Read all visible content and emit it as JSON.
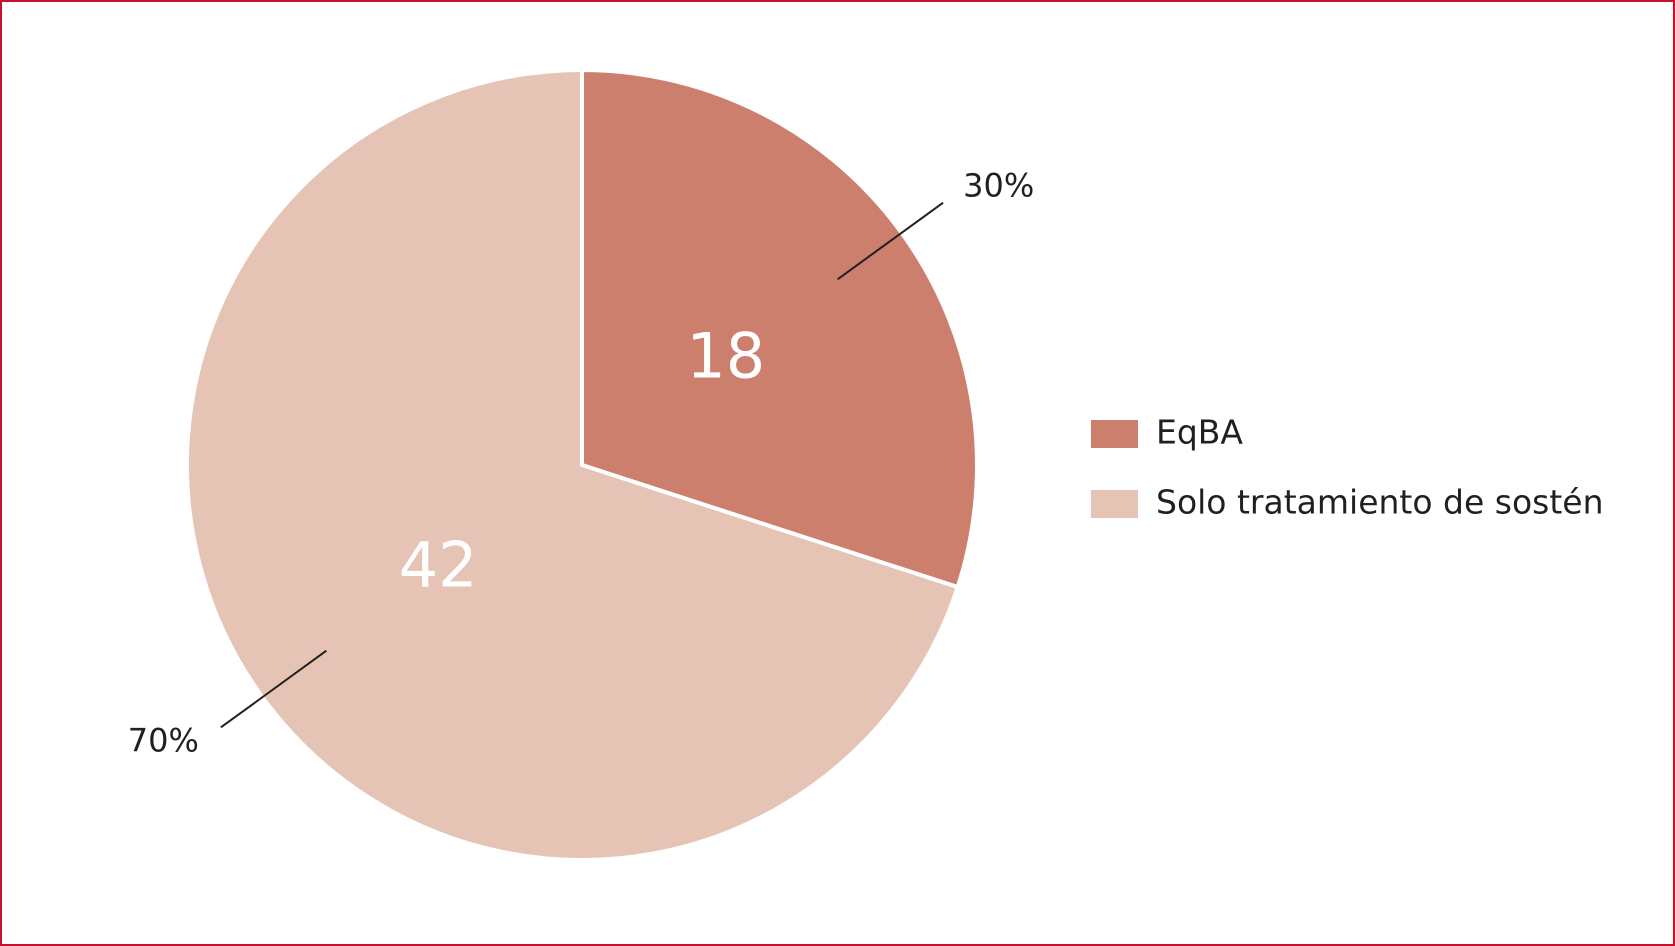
{
  "chart_data": {
    "type": "pie",
    "categories": [
      "EqBA",
      "Solo tratamiento de sostén"
    ],
    "values": [
      18,
      42
    ],
    "percent_labels": [
      "30%",
      "70%"
    ],
    "colors": [
      "#cd7f6e",
      "#e5c3b5"
    ],
    "legend": "right"
  }
}
